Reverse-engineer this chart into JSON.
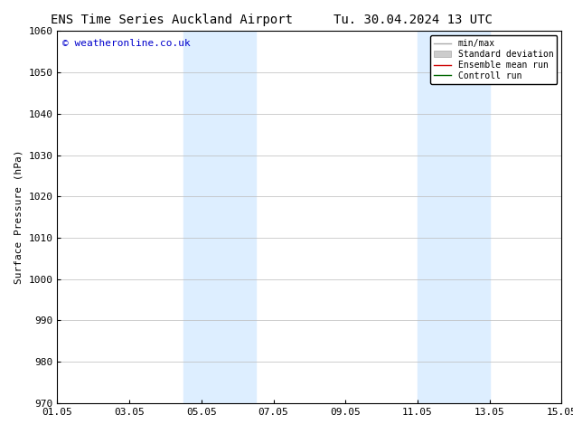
{
  "title_left": "ENS Time Series Auckland Airport",
  "title_right": "Tu. 30.04.2024 13 UTC",
  "ylabel": "Surface Pressure (hPa)",
  "xlim": [
    0,
    14
  ],
  "ylim": [
    970,
    1060
  ],
  "yticks": [
    970,
    980,
    990,
    1000,
    1010,
    1020,
    1030,
    1040,
    1050,
    1060
  ],
  "xtick_labels": [
    "01.05",
    "03.05",
    "05.05",
    "07.05",
    "09.05",
    "11.05",
    "13.05",
    "15.05"
  ],
  "xtick_positions": [
    0,
    2,
    4,
    6,
    8,
    10,
    12,
    14
  ],
  "shaded_bands": [
    {
      "x_start": 3.5,
      "x_end": 5.5
    },
    {
      "x_start": 10.0,
      "x_end": 12.0
    }
  ],
  "shaded_color": "#ddeeff",
  "background_color": "#ffffff",
  "watermark_text": "© weatheronline.co.uk",
  "watermark_color": "#0000cc",
  "legend_entries": [
    {
      "label": "min/max",
      "color": "#aaaaaa"
    },
    {
      "label": "Standard deviation",
      "color": "#cccccc"
    },
    {
      "label": "Ensemble mean run",
      "color": "#cc0000"
    },
    {
      "label": "Controll run",
      "color": "#006600"
    }
  ],
  "title_fontsize": 10,
  "tick_fontsize": 8,
  "legend_fontsize": 7,
  "watermark_fontsize": 8,
  "ylabel_fontsize": 8
}
